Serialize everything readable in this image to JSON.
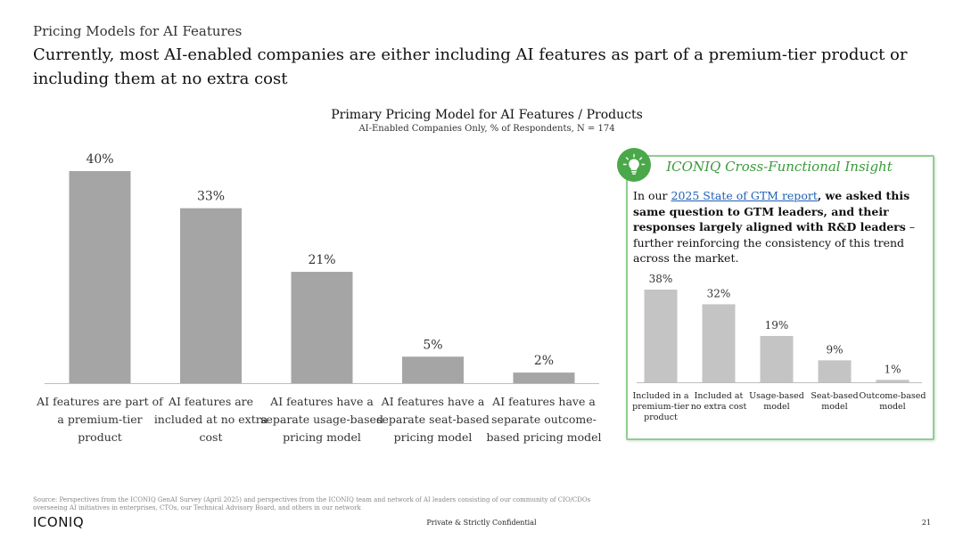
{
  "slide": {
    "section_label": "Pricing Models for AI Features",
    "headline": "Currently, most AI-enabled companies are either including AI features as part of a premium-tier product or including them at no extra cost"
  },
  "chart_data": [
    {
      "type": "bar",
      "title": "Primary Pricing Model for AI Features / Products",
      "subtitle": "AI-Enabled Companies Only, % of Respondents, N = 174",
      "categories": [
        [
          "AI features are part of",
          "a premium-tier",
          "product"
        ],
        [
          "AI features are",
          "included at no extra",
          "cost"
        ],
        [
          "AI features have a",
          "separate usage-based",
          "pricing model"
        ],
        [
          "AI features have a",
          "separate seat-based",
          "pricing model"
        ],
        [
          "AI features have a",
          "separate outcome-",
          "based pricing model"
        ]
      ],
      "values": [
        40,
        33,
        21,
        5,
        2
      ],
      "value_labels": [
        "40%",
        "33%",
        "21%",
        "5%",
        "2%"
      ],
      "ylim": [
        0,
        40
      ],
      "grid": false,
      "color": "#a5a5a5"
    },
    {
      "type": "bar",
      "title": "",
      "categories": [
        [
          "Included in a",
          "premium-tier",
          "product"
        ],
        [
          "Included at",
          "no extra cost"
        ],
        [
          "Usage-based",
          "model"
        ],
        [
          "Seat-based",
          "model"
        ],
        [
          "Outcome-based",
          "model"
        ]
      ],
      "values": [
        38,
        32,
        19,
        9,
        1
      ],
      "value_labels": [
        "38%",
        "32%",
        "19%",
        "9%",
        "1%"
      ],
      "ylim": [
        0,
        38
      ],
      "grid": false,
      "color": "#c4c4c4"
    }
  ],
  "insight": {
    "icon": "lightbulb-icon",
    "title": "ICONIQ Cross-Functional Insight",
    "intro": "In our ",
    "link_text": "2025 State of GTM report",
    "bold_text": ", we asked this same question to GTM leaders, and their responses largely aligned with R&D leaders",
    "rest_text": " – further reinforcing the consistency of this trend across the market.",
    "accent_color": "#4aa84a"
  },
  "footer": {
    "source": "Source: Perspectives from the ICONIQ GenAI Survey (April 2025) and perspectives from the ICONIQ team and network of AI leaders consisting of our community of CIO/CDOs overseeing AI initiatives in enterprises, CTOs, our Technical Advisory Board, and others in our network",
    "brand": "ICONIQ",
    "confidential": "Private & Strictly Confidential",
    "page_number": "21"
  }
}
